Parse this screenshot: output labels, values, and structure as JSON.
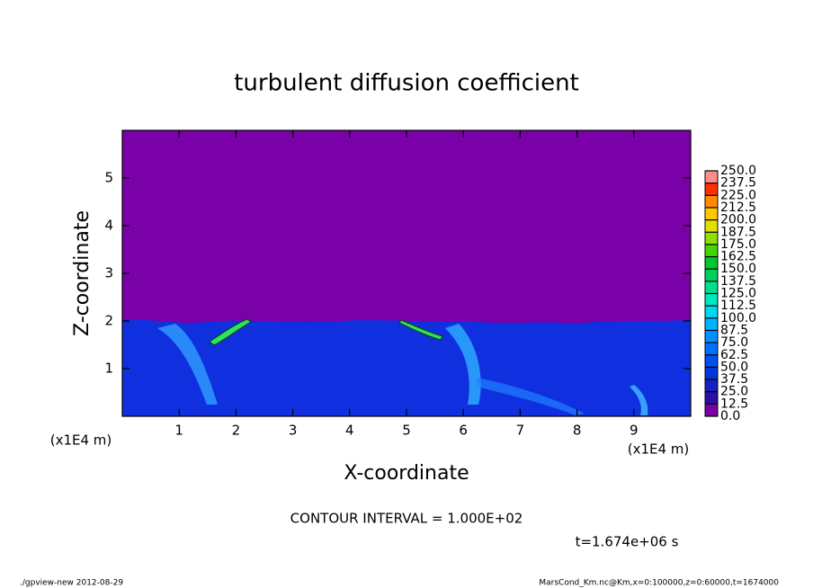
{
  "chart_data": {
    "type": "contour",
    "title": "turbulent diffusion coefficient",
    "x_label": "X-coordinate",
    "y_label": "Z-coordinate",
    "x_unit_left": "(x1E4 m)",
    "x_unit_right": "(x1E4 m)",
    "xlim": [
      0,
      10
    ],
    "xticks": [
      1,
      2,
      3,
      4,
      5,
      6,
      7,
      8,
      9
    ],
    "ylim": [
      0,
      6
    ],
    "yticks": [
      1,
      2,
      3,
      4,
      5
    ],
    "contour_interval": "CONTOUR INTERVAL = 1.000E+02",
    "time": "t=1.674e+06 s",
    "footer_left": "./gpview-new   2012-08-29",
    "footer_right": "MarsCond_Km.nc@Km,x=0:100000,z=0:60000,t=1674000",
    "colorbar": {
      "levels": [
        {
          "value": 0,
          "label": "0.0"
        },
        {
          "value": 12.5,
          "label": "12.5"
        },
        {
          "value": 25,
          "label": "25.0"
        },
        {
          "value": 37.5,
          "label": "37.5"
        },
        {
          "value": 50,
          "label": "50.0"
        },
        {
          "value": 62.5,
          "label": "62.5"
        },
        {
          "value": 75,
          "label": "75.0"
        },
        {
          "value": 87.5,
          "label": "87.5"
        },
        {
          "value": 100,
          "label": "100.0"
        },
        {
          "value": 112.5,
          "label": "112.5"
        },
        {
          "value": 125,
          "label": "125.0"
        },
        {
          "value": 137.5,
          "label": "137.5"
        },
        {
          "value": 150,
          "label": "150.0"
        },
        {
          "value": 162.5,
          "label": "162.5"
        },
        {
          "value": 175,
          "label": "175.0"
        },
        {
          "value": 187.5,
          "label": "187.5"
        },
        {
          "value": 200,
          "label": "200.0"
        },
        {
          "value": 212.5,
          "label": "212.5"
        },
        {
          "value": 225,
          "label": "225.0"
        },
        {
          "value": 237.5,
          "label": "237.5"
        },
        {
          "value": 250,
          "label": "250.0"
        }
      ],
      "colors": [
        "#7a00a8",
        "#2a10a8",
        "#1a20c0",
        "#0038d8",
        "#0050f0",
        "#0070ff",
        "#0090ff",
        "#00b4ff",
        "#00d8f0",
        "#00e8c0",
        "#00e090",
        "#00d060",
        "#00c830",
        "#40d800",
        "#90e000",
        "#e0e000",
        "#ffc800",
        "#ff8c00",
        "#ff3000",
        "#ff8c8c"
      ]
    }
  }
}
